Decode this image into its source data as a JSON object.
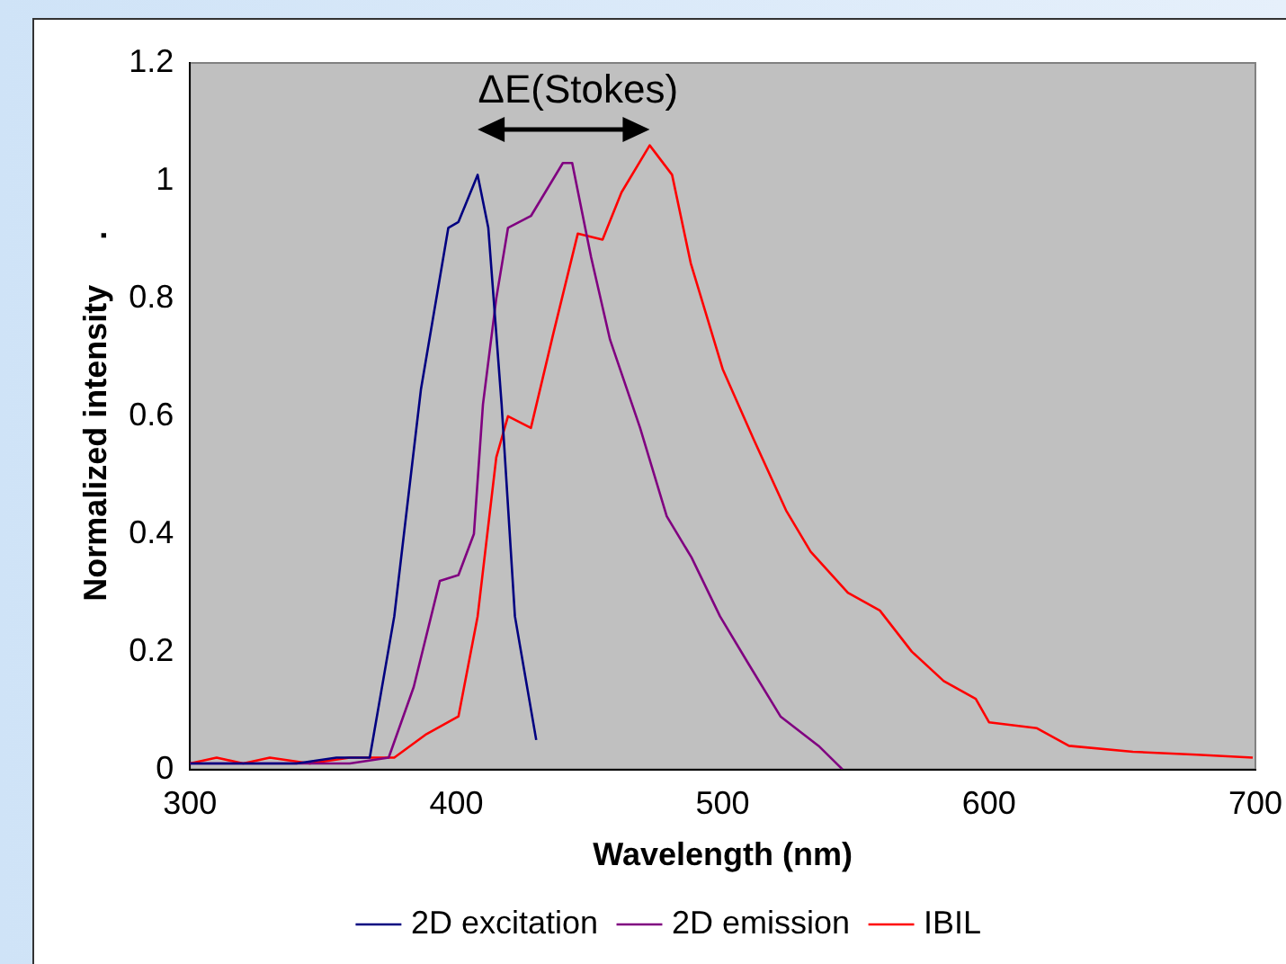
{
  "chart_data": {
    "type": "line",
    "xlabel": "Wavelength (nm)",
    "ylabel": "Normalized intensity     .",
    "xlim": [
      300,
      700
    ],
    "xticks": [
      300,
      400,
      500,
      600,
      700
    ],
    "ylim": [
      0,
      1.2
    ],
    "yticks": [
      0,
      0.2,
      0.4,
      0.6,
      0.8,
      1,
      1.2
    ],
    "grid": false,
    "legend": "bottom",
    "marker": "none",
    "line_style": "solid",
    "annotations": [
      "ΔE(Stokes)"
    ],
    "series": [
      {
        "name": "2D excitation",
        "color": "#000080",
        "x": [
          300,
          320,
          340,
          355,
          367.5,
          376.7,
          386.7,
          397,
          400.8,
          408,
          412,
          417,
          422,
          430
        ],
        "values": [
          0.01,
          0.01,
          0.01,
          0.02,
          0.02,
          0.26,
          0.645,
          0.92,
          0.93,
          1.01,
          0.92,
          0.62,
          0.26,
          0.05
        ]
      },
      {
        "name": "2D emission",
        "color": "#800080",
        "x": [
          300,
          360,
          374.6,
          384,
          393.8,
          400.8,
          406.6,
          410,
          415,
          419.4,
          428,
          440,
          443.5,
          450.6,
          457.7,
          469,
          479,
          488.3,
          499,
          509.6,
          521.7,
          536,
          545
        ],
        "values": [
          0.01,
          0.01,
          0.02,
          0.14,
          0.32,
          0.33,
          0.4,
          0.62,
          0.8,
          0.92,
          0.94,
          1.03,
          1.03,
          0.87,
          0.73,
          0.58,
          0.43,
          0.36,
          0.26,
          0.18,
          0.09,
          0.04,
          0
        ]
      },
      {
        "name": "IBIL",
        "color": "#ff0000",
        "x": [
          300,
          310,
          320,
          330,
          345,
          360,
          376.7,
          388.8,
          400.8,
          408,
          415,
          419.4,
          428,
          436.4,
          445.6,
          454.9,
          462,
          472.6,
          481,
          488,
          500,
          511.7,
          523.8,
          533,
          547,
          559,
          571,
          583,
          595,
          600,
          618,
          630,
          654,
          678,
          699
        ],
        "values": [
          0.01,
          0.02,
          0.01,
          0.02,
          0.01,
          0.02,
          0.02,
          0.06,
          0.09,
          0.26,
          0.53,
          0.6,
          0.58,
          0.74,
          0.91,
          0.9,
          0.98,
          1.06,
          1.01,
          0.86,
          0.68,
          0.56,
          0.44,
          0.37,
          0.3,
          0.27,
          0.2,
          0.15,
          0.12,
          0.08,
          0.07,
          0.04,
          0.03,
          0.025,
          0.02
        ]
      }
    ]
  }
}
